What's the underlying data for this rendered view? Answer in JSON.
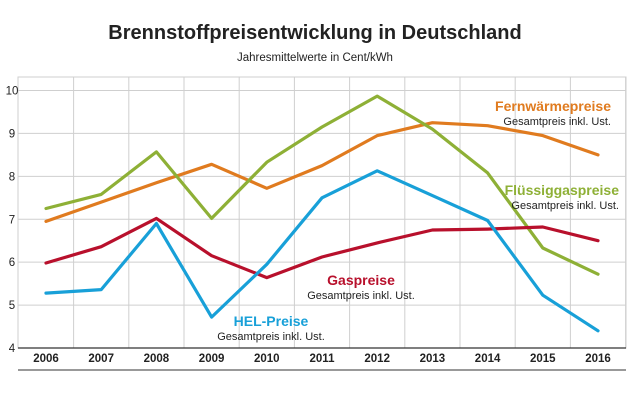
{
  "chart_data": {
    "type": "line",
    "title": "Brennstoffpreisentwicklung in Deutschland",
    "subtitle": "Jahresmittelwerte in Cent/kWh",
    "xlabel": "",
    "ylabel": "",
    "categories": [
      "2006",
      "2007",
      "2008",
      "2009",
      "2010",
      "2011",
      "2012",
      "2013",
      "2014",
      "2015",
      "2016"
    ],
    "ylim": [
      4,
      10
    ],
    "yticks": [
      4,
      5,
      6,
      7,
      8,
      9,
      10
    ],
    "grid": true,
    "series": [
      {
        "name": "Fernwärmepreise",
        "note": "Gesamtpreis inkl. Ust.",
        "color": "#e07b1f",
        "values": [
          6.95,
          7.4,
          7.85,
          8.28,
          7.72,
          8.25,
          8.95,
          9.25,
          9.18,
          8.95,
          8.5
        ]
      },
      {
        "name": "Flüssiggaspreise",
        "note": "Gesamtpreis inkl. Ust.",
        "color": "#8eb036",
        "values": [
          7.25,
          7.58,
          8.57,
          7.02,
          8.33,
          9.15,
          9.87,
          9.1,
          8.08,
          6.33,
          5.72
        ]
      },
      {
        "name": "Gaspreise",
        "note": "Gesamtpreis inkl. Ust.",
        "color": "#b8102c",
        "values": [
          5.98,
          6.36,
          7.02,
          6.15,
          5.64,
          6.12,
          6.45,
          6.75,
          6.77,
          6.82,
          6.5
        ]
      },
      {
        "name": "HEL-Preise",
        "note": "Gesamtpreis inkl. Ust.",
        "color": "#18a0d8",
        "values": [
          5.28,
          5.36,
          6.9,
          4.72,
          5.95,
          7.5,
          8.13,
          7.55,
          6.97,
          5.23,
          4.4
        ]
      }
    ],
    "legend_placement": "inline labels near lines"
  }
}
